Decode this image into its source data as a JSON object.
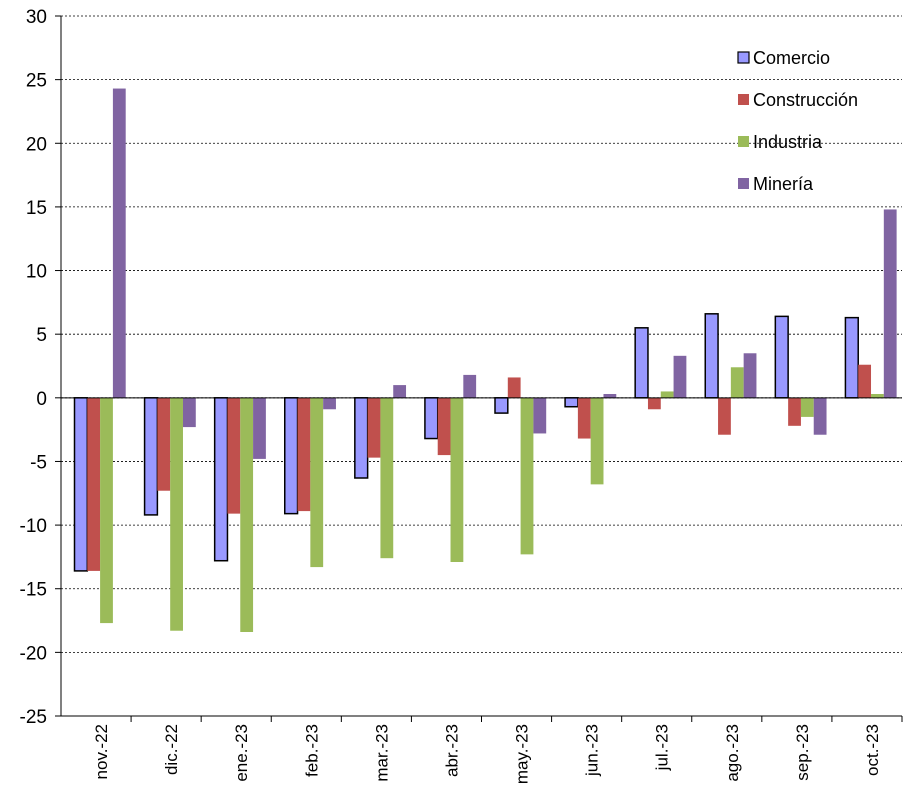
{
  "chart_data": {
    "type": "bar",
    "title": "",
    "xlabel": "",
    "ylabel": "",
    "ylim": [
      -25,
      30
    ],
    "yticks": [
      30,
      25,
      20,
      15,
      10,
      5,
      0,
      -5,
      -10,
      -15,
      -20,
      -25
    ],
    "grid": true,
    "legend_position": "top-right",
    "categories": [
      "nov.-22",
      "dic.-22",
      "ene.-23",
      "feb.-23",
      "mar.-23",
      "abr.-23",
      "may.-23",
      "jun.-23",
      "jul.-23",
      "ago.-23",
      "sep.-23",
      "oct.-23"
    ],
    "series": [
      {
        "name": "Comercio",
        "color": "#9999ff",
        "outline": "#000000",
        "values": [
          -13.6,
          -9.2,
          -12.8,
          -9.1,
          -6.3,
          -3.2,
          -1.2,
          -0.7,
          5.5,
          6.6,
          6.4,
          6.3
        ]
      },
      {
        "name": "Construcción",
        "color": "#c0504d",
        "values": [
          -13.6,
          -7.3,
          -9.1,
          -8.9,
          -4.7,
          -4.5,
          1.6,
          -3.2,
          -0.9,
          -2.9,
          -2.2,
          2.6
        ]
      },
      {
        "name": "Industria",
        "color": "#9bbb59",
        "values": [
          -17.7,
          -18.3,
          -18.4,
          -13.3,
          -12.6,
          -12.9,
          -12.3,
          -6.8,
          0.5,
          2.4,
          -1.5,
          0.3
        ]
      },
      {
        "name": "Minería",
        "color": "#8064a2",
        "values": [
          24.3,
          -2.3,
          -4.8,
          -0.9,
          1.0,
          1.8,
          -2.8,
          0.3,
          3.3,
          3.5,
          -2.9,
          14.8
        ]
      }
    ]
  }
}
